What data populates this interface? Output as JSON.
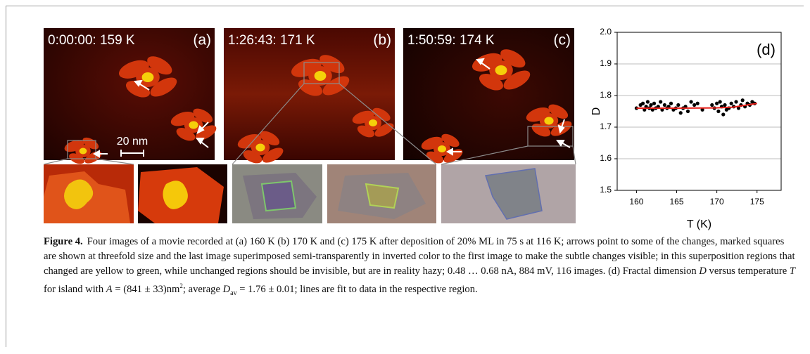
{
  "panels": [
    {
      "timestamp": "0:00:00: 159 K",
      "label": "(a)"
    },
    {
      "timestamp": "1:26:43: 171 K",
      "label": "(b)"
    },
    {
      "timestamp": "1:50:59: 174 K",
      "label": "(c)"
    }
  ],
  "scale_bar": "20 nm",
  "chart_data": {
    "type": "scatter",
    "label": "(d)",
    "x_label": "T (K)",
    "y_label": "D",
    "xlim": [
      157.6,
      178
    ],
    "ylim": [
      1.5,
      2.0
    ],
    "xticks": [
      160,
      165,
      170,
      175
    ],
    "yticks": [
      1.5,
      1.6,
      1.7,
      1.8,
      1.9,
      {
        "value": 2.0,
        "label": "2.0"
      }
    ],
    "grid": true,
    "series": [
      {
        "color": "#000000",
        "x": [
          160,
          160.5,
          160.8,
          161,
          161.2,
          161.4,
          161.6,
          161.8,
          162,
          162.2,
          162.4,
          162.7,
          163,
          163.2,
          163.5,
          163.8,
          164,
          164.3,
          164.6,
          164.9,
          165.2,
          165.5,
          165.8,
          166.1,
          166.4,
          166.8,
          167.2,
          167.6,
          168.2,
          169.4,
          169.7,
          170,
          170.2,
          170.4,
          170.6,
          170.8,
          171,
          171.2,
          171.5,
          171.8,
          172.1,
          172.4,
          172.7,
          173,
          173.2,
          173.5,
          173.8,
          174.1,
          174.4,
          174.7
        ],
        "y": [
          1.76,
          1.77,
          1.775,
          1.755,
          1.765,
          1.78,
          1.76,
          1.77,
          1.755,
          1.775,
          1.76,
          1.765,
          1.78,
          1.755,
          1.77,
          1.76,
          1.765,
          1.775,
          1.755,
          1.76,
          1.77,
          1.745,
          1.76,
          1.765,
          1.75,
          1.78,
          1.77,
          1.775,
          1.755,
          1.77,
          1.76,
          1.775,
          1.75,
          1.78,
          1.765,
          1.74,
          1.77,
          1.755,
          1.76,
          1.775,
          1.765,
          1.78,
          1.76,
          1.77,
          1.785,
          1.765,
          1.775,
          1.77,
          1.78,
          1.775
        ]
      },
      {
        "type": "line",
        "color": "#e8201a",
        "x": [
          160,
          165,
          170,
          172,
          175
        ],
        "y": [
          1.76,
          1.76,
          1.761,
          1.763,
          1.775
        ]
      }
    ]
  },
  "caption": {
    "label": "Figure 4.",
    "parts": [
      "Four images of a movie recorded at (a) 160 K (b) 170 K and (c) 175 K after deposition of 20% ML in 75 s at 116 K; arrows point to some of the changes, marked squares are shown at threefold size and the last image superimposed semi-transparently in inverted color to the first image to make the subtle changes visible; in this superposition regions that changed are yellow to green, while unchanged regions should be invisible, but are in reality hazy; 0.48 … 0.68 nA, 884 mV, 116 images. (d) Fractal dimension ",
      "D",
      " versus temperature ",
      "T",
      " for island with ",
      "A",
      " = (841 ± 33)nm",
      "2",
      "; average ",
      "D",
      "av",
      " = 1.76 ± 0.01; lines are fit to data in the respective region."
    ]
  }
}
